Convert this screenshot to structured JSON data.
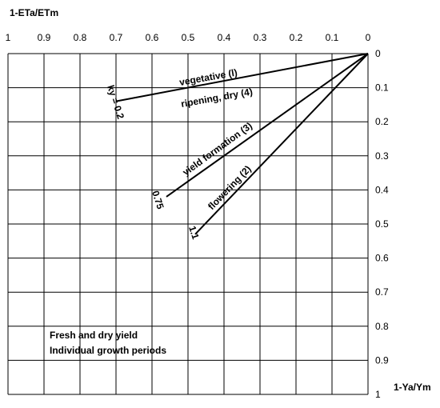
{
  "chart_data": {
    "type": "line",
    "x_axis_label": "1-ETa/ETm",
    "y_axis_label": "1-Ya/Ym",
    "x_ticks": [
      "1",
      "0.9",
      "0.8",
      "0.7",
      "0.6",
      "0.5",
      "0.4",
      "0.3",
      "0.2",
      "0.1",
      "0"
    ],
    "y_ticks": [
      "0",
      "0.1",
      "0.2",
      "0.3",
      "0.4",
      "0.5",
      "0.6",
      "0.7",
      "0.8",
      "0.9",
      "1"
    ],
    "xlim": [
      1,
      0
    ],
    "ylim": [
      0,
      1
    ],
    "grid": true,
    "series": [
      {
        "name": "vegetative (l)",
        "ky_label": "ky = 0.2",
        "points": [
          [
            0,
            0
          ],
          [
            0.7,
            0.14
          ]
        ]
      },
      {
        "name": "ripening, dry (4)",
        "points": [
          [
            0,
            0
          ],
          [
            0.7,
            0.14
          ]
        ]
      },
      {
        "name": "yield formation (3)",
        "ky_label": "0.75",
        "points": [
          [
            0,
            0
          ],
          [
            0.56,
            0.42
          ]
        ]
      },
      {
        "name": "flowering (2)",
        "ky_label": "1.1",
        "points": [
          [
            0,
            0
          ],
          [
            0.48,
            0.53
          ]
        ]
      }
    ],
    "notes": [
      "Fresh and dry yield",
      "Individual growth periods"
    ]
  }
}
